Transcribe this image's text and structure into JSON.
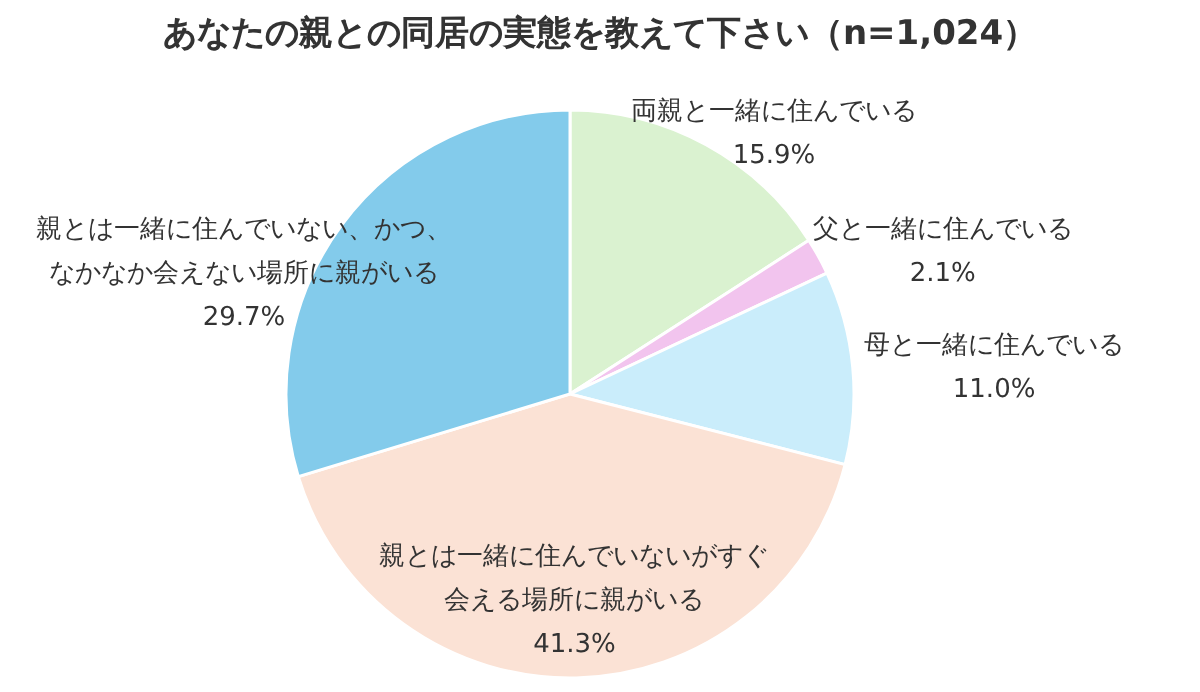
{
  "chart_data": {
    "type": "pie",
    "title": "あなたの親との同居の実態を教えて下さい（n=1,024）",
    "categories": [
      "両親と一緒に住んでいる",
      "父と一緒に住んでいる",
      "母と一緒に住んでいる",
      "親とは一緒に住んでいないがすぐ会える場所に親がいる",
      "親とは一緒に住んでいない、かつ、なかなか会えない場所に親がいる"
    ],
    "values": [
      15.9,
      2.1,
      11.0,
      41.3,
      29.7
    ],
    "colors": [
      "#daf2d0",
      "#f2c4ee",
      "#caedfb",
      "#fbe2d5",
      "#83cbeb"
    ],
    "value_labels": [
      "15.9%",
      "2.1%",
      "11.0%",
      "41.3%",
      "29.7%"
    ]
  }
}
